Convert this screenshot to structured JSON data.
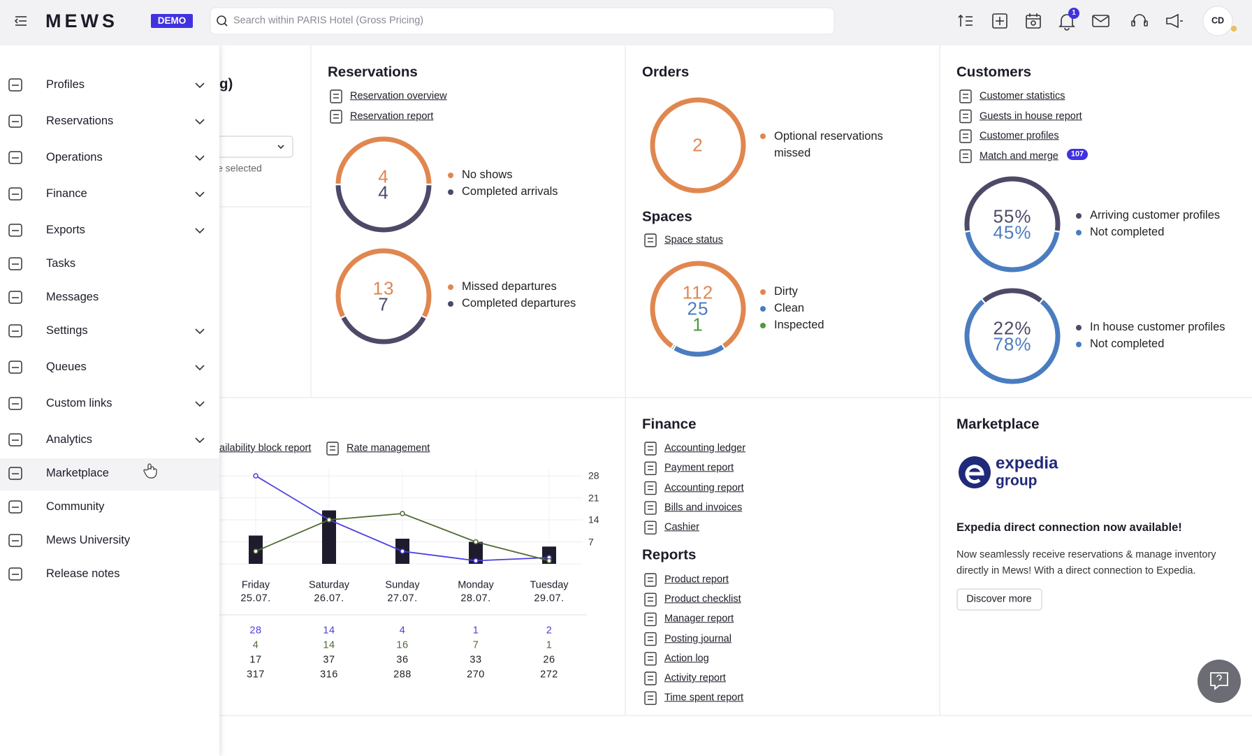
{
  "topbar": {
    "logo": "MEWS",
    "badge": "DEMO",
    "search_placeholder": "Search within PARIS Hotel (Gross Pricing)",
    "notifications": 1,
    "avatar": "CD"
  },
  "sidebar": {
    "items": [
      {
        "label": "Profiles",
        "has_submenu": true
      },
      {
        "label": "Reservations",
        "has_submenu": true
      },
      {
        "label": "Operations",
        "has_submenu": true
      },
      {
        "label": "Finance",
        "has_submenu": true
      },
      {
        "label": "Exports",
        "has_submenu": true
      },
      {
        "label": "Tasks",
        "has_submenu": false
      },
      {
        "label": "Messages",
        "has_submenu": false
      },
      {
        "label": "Settings",
        "has_submenu": true
      },
      {
        "label": "Queues",
        "has_submenu": true
      },
      {
        "label": "Custom links",
        "has_submenu": true
      },
      {
        "label": "Analytics",
        "has_submenu": true
      },
      {
        "label": "Marketplace",
        "has_submenu": false
      },
      {
        "label": "Community",
        "has_submenu": false
      },
      {
        "label": "Mews University",
        "has_submenu": false
      },
      {
        "label": "Release notes",
        "has_submenu": false
      }
    ]
  },
  "hidden_panel": {
    "title_fragment": "g)",
    "select_hint_fragment": "e selected"
  },
  "reservations": {
    "title": "Reservations",
    "links": [
      "Reservation overview",
      "Reservation report"
    ],
    "donuts": [
      {
        "labels": [
          "No shows",
          "Completed arrivals"
        ],
        "values": [
          4,
          4
        ],
        "colors": [
          "#e0874f",
          "#4d4a68"
        ]
      },
      {
        "labels": [
          "Missed departures",
          "Completed departures"
        ],
        "values": [
          13,
          7
        ],
        "colors": [
          "#e0874f",
          "#4d4a68"
        ]
      }
    ]
  },
  "orders": {
    "title": "Orders",
    "donut": {
      "labels": [
        "Optional reservations missed"
      ],
      "values": [
        2
      ],
      "colors": [
        "#e0874f"
      ]
    }
  },
  "spaces": {
    "title": "Spaces",
    "links": [
      "Space status"
    ],
    "donut": {
      "labels": [
        "Dirty",
        "Clean",
        "Inspected"
      ],
      "values": [
        112,
        25,
        1
      ],
      "colors": [
        "#e0874f",
        "#4a7cc0",
        "#4d9a3a"
      ]
    }
  },
  "customers": {
    "title": "Customers",
    "links": [
      "Customer statistics",
      "Guests in house report",
      "Customer profiles",
      "Match and merge"
    ],
    "match_badge": 107,
    "donuts": [
      {
        "labels": [
          "Arriving customer profiles",
          "Not completed"
        ],
        "values": [
          55,
          45
        ],
        "value_labels": [
          "55%",
          "45%"
        ],
        "colors": [
          "#4d4a68",
          "#4a7cc0"
        ]
      },
      {
        "labels": [
          "In house customer profiles",
          "Not completed"
        ],
        "values": [
          22,
          78
        ],
        "value_labels": [
          "22%",
          "78%"
        ],
        "colors": [
          "#4d4a68",
          "#4a7cc0"
        ]
      }
    ]
  },
  "analytics": {
    "links": [
      "ailability block report",
      "Rate management"
    ],
    "chart": {
      "type": "line",
      "days": [
        "Friday",
        "Saturday",
        "Sunday",
        "Monday",
        "Tuesday"
      ],
      "dates": [
        "25.07.",
        "26.07.",
        "27.07.",
        "28.07.",
        "29.07."
      ],
      "ylim": [
        0,
        30
      ],
      "yticks": [
        7,
        14,
        21,
        28
      ],
      "grid": true,
      "series": [
        {
          "type": "line",
          "color": "#4b3fe0",
          "values": [
            28,
            14,
            4,
            1,
            2
          ]
        },
        {
          "type": "line",
          "color": "#4f6b34",
          "values": [
            4,
            14,
            16,
            7,
            1
          ]
        },
        {
          "type": "bar",
          "color": "#1e1c2c",
          "values": [
            9,
            17,
            8,
            7,
            5.5
          ]
        }
      ],
      "rows": [
        [
          17,
          37,
          36,
          33,
          26
        ],
        [
          317,
          316,
          288,
          270,
          272
        ]
      ]
    }
  },
  "finance": {
    "title": "Finance",
    "links": [
      "Accounting ledger",
      "Payment report",
      "Accounting report",
      "Bills and invoices",
      "Cashier"
    ]
  },
  "reports": {
    "title": "Reports",
    "links": [
      "Product report",
      "Product checklist",
      "Manager report",
      "Posting journal",
      "Action log",
      "Activity report",
      "Time spent report"
    ]
  },
  "marketplace": {
    "title": "Marketplace",
    "logo_text": [
      "expedia",
      "group"
    ],
    "headline": "Expedia direct connection now available!",
    "body": "Now seamlessly receive reservations & manage inventory directly in Mews! With a direct connection to Expedia.",
    "button": "Discover more"
  }
}
